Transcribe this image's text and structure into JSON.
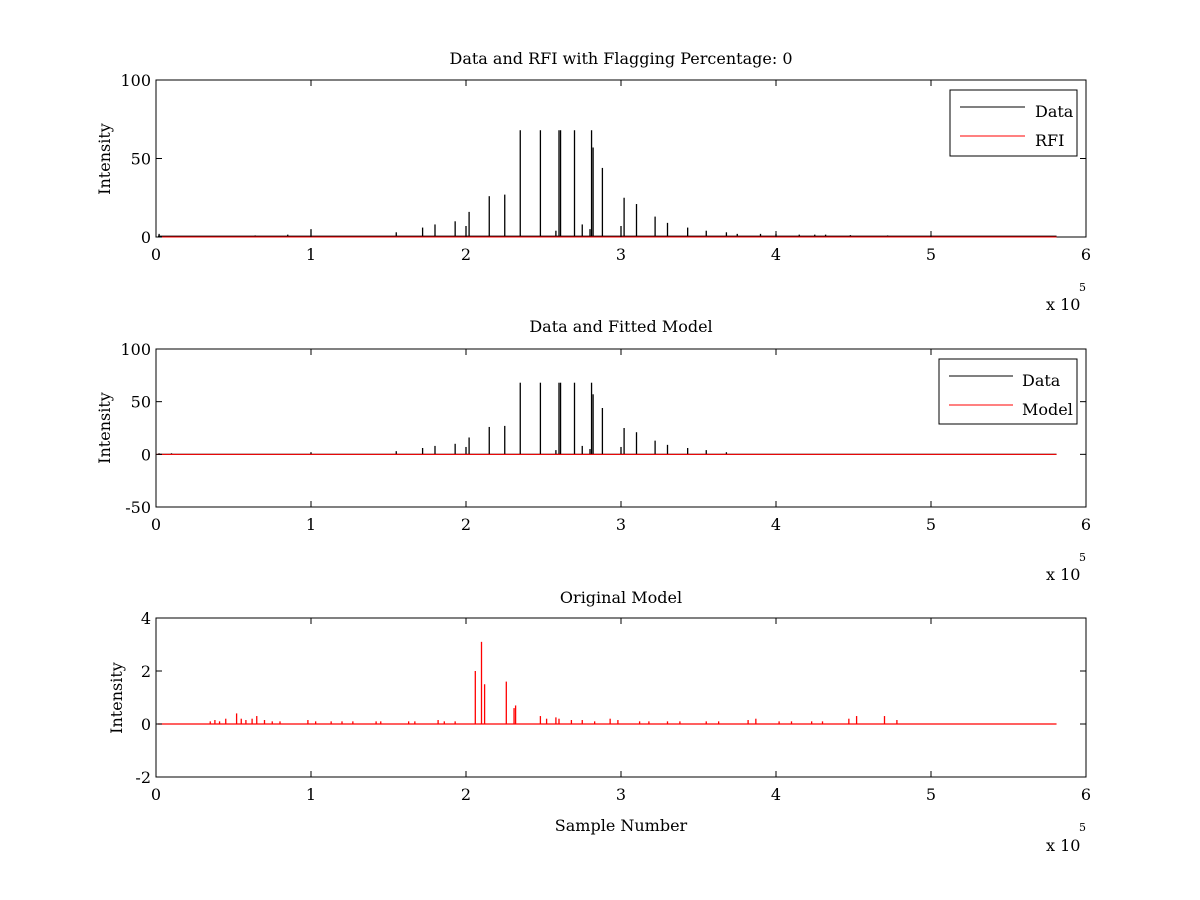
{
  "chart_data": [
    {
      "type": "line",
      "title": "Data and RFI with Flagging Percentage: 0",
      "xlabel": "",
      "ylabel": "Intensity",
      "xlim": [
        0,
        600000
      ],
      "ylim": [
        0,
        100
      ],
      "xticks": [
        0,
        1,
        2,
        3,
        4,
        5,
        6
      ],
      "yticks": [
        0,
        50,
        100
      ],
      "x_multiplier": {
        "base": "x 10",
        "exponent": "5"
      },
      "legend": {
        "position": "top-right",
        "entries": [
          "Data",
          "RFI"
        ]
      },
      "series": [
        {
          "name": "Data",
          "color": "#000000",
          "style": "spikes",
          "baseline": 0.5,
          "x": [
            2000,
            64000,
            85000,
            100000,
            155000,
            172000,
            180000,
            193000,
            200000,
            202000,
            215000,
            225000,
            235000,
            248000,
            258000,
            260000,
            261000,
            270000,
            275000,
            280000,
            281000,
            282000,
            288000,
            300000,
            302000,
            310000,
            322000,
            330000,
            343000,
            355000,
            368000,
            375000,
            390000,
            400000,
            415000,
            425000,
            432000,
            448000,
            472000,
            500000
          ],
          "y": [
            2,
            1,
            1.5,
            5,
            3,
            6,
            8,
            10,
            7,
            16,
            26,
            27,
            68,
            68,
            4,
            68,
            68,
            68,
            8,
            5,
            68,
            57,
            44,
            7,
            25,
            21,
            13,
            9,
            6,
            4,
            3,
            2,
            2,
            2,
            1.5,
            1.5,
            1.5,
            1.2,
            1,
            1
          ]
        },
        {
          "name": "RFI",
          "color": "#ff0000",
          "style": "line",
          "x": [
            0,
            581000
          ],
          "y": [
            0,
            0
          ]
        }
      ]
    },
    {
      "type": "line",
      "title": "Data and Fitted Model",
      "xlabel": "",
      "ylabel": "Intensity",
      "xlim": [
        0,
        600000
      ],
      "ylim": [
        -50,
        100
      ],
      "xticks": [
        0,
        1,
        2,
        3,
        4,
        5,
        6
      ],
      "yticks": [
        -50,
        0,
        50,
        100
      ],
      "x_multiplier": {
        "base": "x 10",
        "exponent": "5"
      },
      "legend": {
        "position": "top-right",
        "entries": [
          "Data",
          "Model"
        ]
      },
      "series": [
        {
          "name": "Data",
          "color": "#000000",
          "style": "spikes",
          "baseline": 0,
          "x": [
            2000,
            10000,
            100000,
            155000,
            172000,
            180000,
            193000,
            200000,
            202000,
            215000,
            225000,
            235000,
            248000,
            258000,
            260000,
            261000,
            270000,
            275000,
            280000,
            281000,
            282000,
            288000,
            300000,
            302000,
            310000,
            322000,
            330000,
            343000,
            355000,
            368000
          ],
          "y": [
            1,
            1,
            2,
            3,
            6,
            8,
            10,
            7,
            16,
            26,
            27,
            68,
            68,
            4,
            68,
            68,
            68,
            8,
            5,
            68,
            57,
            44,
            7,
            25,
            21,
            13,
            9,
            6,
            4,
            2
          ]
        },
        {
          "name": "Model",
          "color": "#ff0000",
          "style": "line",
          "x": [
            0,
            581000
          ],
          "y": [
            0,
            0
          ]
        }
      ]
    },
    {
      "type": "line",
      "title": "Original Model",
      "xlabel": "Sample Number",
      "ylabel": "Intensity",
      "xlim": [
        0,
        600000
      ],
      "ylim": [
        -2,
        4
      ],
      "xticks": [
        0,
        1,
        2,
        3,
        4,
        5,
        6
      ],
      "yticks": [
        -2,
        0,
        2,
        4
      ],
      "x_multiplier": {
        "base": "x 10",
        "exponent": "5"
      },
      "legend": null,
      "series": [
        {
          "name": "",
          "color": "#ff0000",
          "style": "spikes",
          "baseline": 0,
          "x": [
            35000,
            38000,
            41000,
            45000,
            52000,
            55000,
            58000,
            62000,
            65000,
            70000,
            75000,
            80000,
            98000,
            103000,
            113000,
            120000,
            127000,
            142000,
            145000,
            163000,
            167000,
            182000,
            186000,
            193000,
            206000,
            210000,
            212000,
            226000,
            231000,
            232000,
            248000,
            252000,
            258000,
            260000,
            268000,
            275000,
            283000,
            293000,
            298000,
            312000,
            318000,
            330000,
            338000,
            355000,
            363000,
            382000,
            387000,
            402000,
            410000,
            423000,
            430000,
            447000,
            452000,
            470000,
            478000
          ],
          "y": [
            0.1,
            0.15,
            0.1,
            0.2,
            0.4,
            0.2,
            0.15,
            0.2,
            0.3,
            0.15,
            0.1,
            0.1,
            0.15,
            0.1,
            0.1,
            0.1,
            0.1,
            0.1,
            0.1,
            0.1,
            0.1,
            0.15,
            0.1,
            0.1,
            2.0,
            3.1,
            1.5,
            1.6,
            0.6,
            0.7,
            0.3,
            0.2,
            0.25,
            0.2,
            0.15,
            0.15,
            0.1,
            0.2,
            0.15,
            0.1,
            0.1,
            0.1,
            0.1,
            0.1,
            0.1,
            0.15,
            0.2,
            0.1,
            0.1,
            0.1,
            0.1,
            0.2,
            0.3,
            0.3,
            0.15
          ]
        }
      ]
    }
  ]
}
